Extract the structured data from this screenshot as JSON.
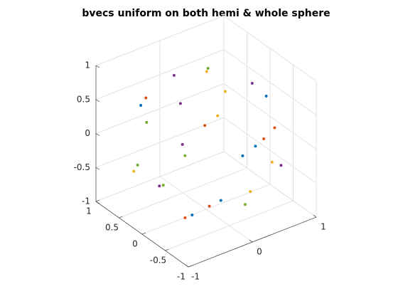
{
  "chart_data": {
    "type": "scatter3d",
    "title": "bvecs uniform on both hemi & whole sphere",
    "xlim": [
      -1,
      1
    ],
    "ylim": [
      -1,
      1
    ],
    "zlim": [
      -1,
      1
    ],
    "xticks": [
      -1,
      0,
      1
    ],
    "yticks": [
      -1,
      -0.5,
      0,
      0.5,
      1
    ],
    "zticks": [
      -1,
      -0.5,
      0,
      0.5,
      1
    ],
    "grid": true,
    "series": [
      {
        "color": "#0072BD",
        "x": [
          -0.66,
          0.94,
          0.41,
          0.21,
          -0.13,
          -0.58
        ],
        "y": [
          0.5,
          0,
          -0.5,
          -0.5,
          -0.5,
          -0.5
        ],
        "z": [
          0.53,
          0.32,
          0.02,
          -0.05,
          -0.58,
          -0.63
        ]
      },
      {
        "color": "#D95319",
        "x": [
          -0.58,
          -0.02,
          0.71,
          0.54,
          -0.31,
          -0.69
        ],
        "y": [
          0.5,
          0,
          -0.5,
          -0.5,
          -0.5,
          -0.5
        ],
        "z": [
          0.61,
          0.24,
          0.18,
          0.08,
          -0.6,
          -0.63
        ]
      },
      {
        "color": "#EDB120",
        "x": [
          0.37,
          0.66,
          0.18,
          0.67,
          -0.77,
          0.33
        ],
        "y": [
          0.5,
          0.5,
          0,
          -0.5,
          0.5,
          -0.5
        ],
        "z": [
          0.65,
          0.25,
          0.31,
          -0.31,
          -0.4,
          -0.62
        ]
      },
      {
        "color": "#7E2F8E",
        "x": [
          -0.14,
          -0.04,
          0.72,
          -0.37,
          0.81,
          -0.73
        ],
        "y": [
          0.5,
          0.5,
          0,
          0,
          -0.5,
          0
        ],
        "z": [
          0.78,
          0.33,
          0.59,
          0.09,
          -0.41,
          -0.39
        ]
      },
      {
        "color": "#77AC30",
        "x": [
          0.39,
          -0.93,
          -0.33,
          -0.71,
          -0.67,
          0.25
        ],
        "y": [
          0.5,
          0,
          0,
          0.5,
          0,
          -0.5
        ],
        "z": [
          0.69,
          0.62,
          -0.09,
          -0.33,
          -0.4,
          -0.78
        ]
      }
    ]
  }
}
